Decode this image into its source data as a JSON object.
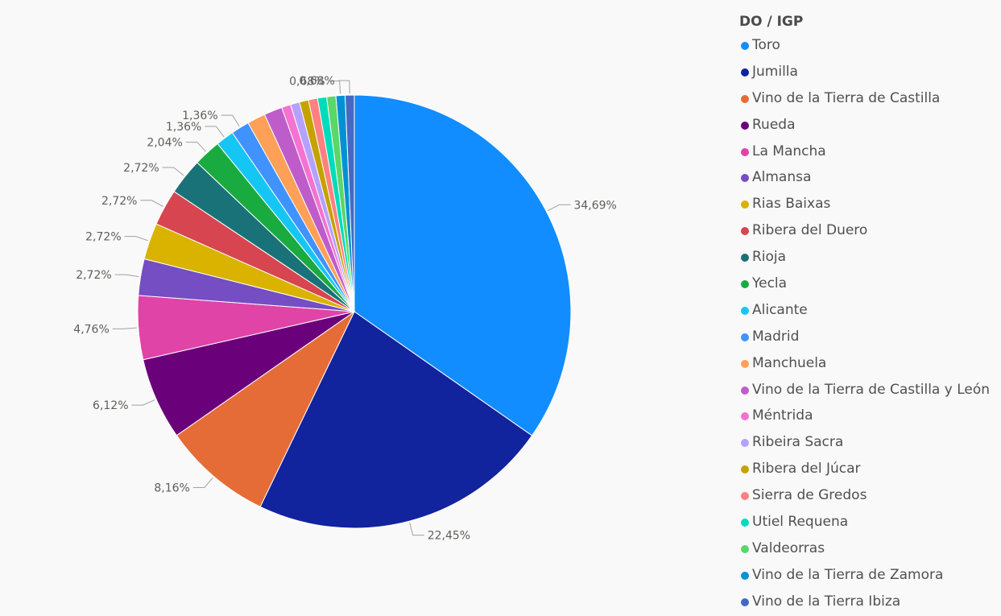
{
  "chart_data": {
    "type": "pie",
    "legend_title": "DO / IGP",
    "legend_position": "right",
    "categories": [
      "Toro",
      "Jumilla",
      "Vino de la Tierra de Castilla",
      "Rueda",
      "La Mancha",
      "Almansa",
      "Rias Baixas",
      "Ribera del Duero",
      "Rioja",
      "Yecla",
      "Alicante",
      "Madrid",
      "Manchuela",
      "Vino de la Tierra de Castilla y León",
      "Méntrida",
      "Ribeira Sacra",
      "Ribera del Júcar",
      "Sierra de Gredos",
      "Utiel Requena",
      "Valdeorras",
      "Vino de la Tierra de Zamora",
      "Vino de la Tierra Ibiza"
    ],
    "values": [
      34.69,
      22.45,
      8.16,
      6.12,
      4.76,
      2.72,
      2.72,
      2.72,
      2.72,
      2.04,
      1.36,
      1.36,
      1.36,
      1.36,
      0.68,
      0.68,
      0.68,
      0.68,
      0.68,
      0.68,
      0.68,
      0.68
    ],
    "data_labels": [
      "34,69%",
      "22,45%",
      "8,16%",
      "6,12%",
      "4,76%",
      "2,72%",
      "2,72%",
      "2,72%",
      "2,72%",
      "2,04%",
      "1,36%",
      "1,36%",
      "",
      "",
      "",
      "",
      "",
      "",
      "",
      "",
      "0,68%",
      "0,68%"
    ],
    "colors": [
      "#118DFF",
      "#12239E",
      "#E66C37",
      "#6B007B",
      "#E044A7",
      "#744EC2",
      "#D9B300",
      "#D64550",
      "#197278",
      "#1AAB40",
      "#15C6F4",
      "#4092FF",
      "#FFA058",
      "#BE5DC9",
      "#F472D0",
      "#B5A1FF",
      "#C4A200",
      "#FF8080",
      "#00DBBC",
      "#5BD667",
      "#0091D5",
      "#4668C5"
    ]
  }
}
